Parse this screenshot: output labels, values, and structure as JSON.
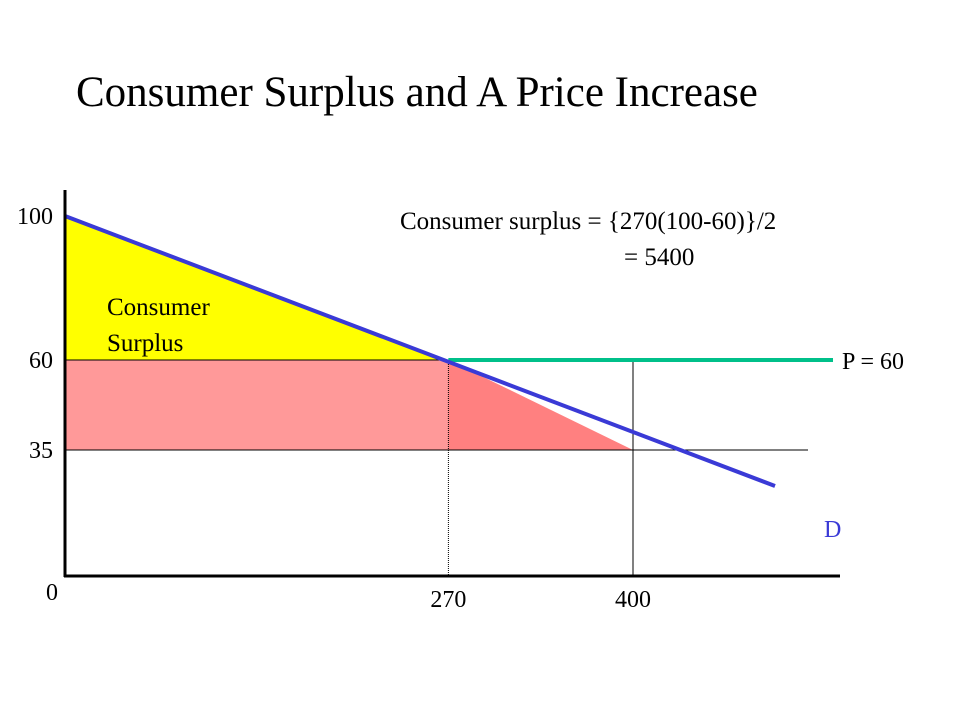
{
  "title": "Consumer Surplus and A Price Increase",
  "annotation": {
    "line1": "Consumer  surplus = {270(100-60)}/2",
    "line2": "=  5400"
  },
  "area_label": {
    "line1": "Consumer",
    "line2": "Surplus"
  },
  "colors": {
    "consumer_surplus": "#ffff00",
    "lost_surplus_rect": "#ff9999",
    "lost_surplus_triangle": "#ff8080",
    "price_line": "#00c08a",
    "demand_line": "#3a3ad6"
  },
  "chart_data": {
    "type": "line",
    "title": "Consumer Surplus and A Price Increase",
    "xlabel": "",
    "ylabel": "",
    "xlim": [
      0,
      500
    ],
    "ylim": [
      0,
      100
    ],
    "x_ticks": [
      "270",
      "400"
    ],
    "y_ticks": [
      "100",
      "60",
      "35"
    ],
    "origin_label": "0",
    "demand": {
      "label": "D",
      "points": [
        [
          0,
          100
        ],
        [
          500,
          25
        ]
      ]
    },
    "price_line": {
      "label": "P = 60",
      "y": 60
    },
    "reference_lines": [
      {
        "kind": "horizontal",
        "y": 35
      },
      {
        "kind": "vertical",
        "x": 270
      },
      {
        "kind": "vertical",
        "x": 400
      }
    ],
    "regions": [
      {
        "name": "Consumer Surplus",
        "polygon": [
          [
            0,
            100
          ],
          [
            0,
            60
          ],
          [
            270,
            60
          ]
        ]
      },
      {
        "name": "rectangle",
        "polygon": [
          [
            0,
            60
          ],
          [
            270,
            60
          ],
          [
            270,
            35
          ],
          [
            0,
            35
          ]
        ]
      },
      {
        "name": "triangle",
        "polygon": [
          [
            270,
            60
          ],
          [
            400,
            35
          ],
          [
            270,
            35
          ]
        ]
      }
    ],
    "grid": false
  }
}
